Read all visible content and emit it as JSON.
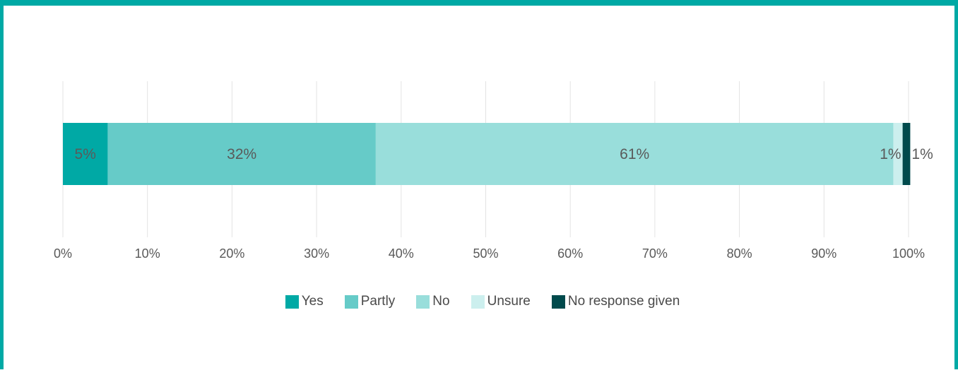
{
  "chart_data": {
    "type": "bar",
    "orientation": "horizontal",
    "stacked": true,
    "normalized": true,
    "title": "",
    "xlabel": "",
    "ylabel": "",
    "xlim": [
      0,
      100
    ],
    "x_ticks": [
      "0%",
      "10%",
      "20%",
      "30%",
      "40%",
      "50%",
      "60%",
      "70%",
      "80%",
      "90%",
      "100%"
    ],
    "grid": "vertical",
    "legend_position": "bottom",
    "series": [
      {
        "name": "Yes",
        "value": 5.3,
        "label": "5%",
        "color": "#00A9A5"
      },
      {
        "name": "Partly",
        "value": 31.7,
        "label": "32%",
        "color": "#66CBC8"
      },
      {
        "name": "No",
        "value": 61.2,
        "label": "61%",
        "color": "#99DEDB"
      },
      {
        "name": "Unsure",
        "value": 1.1,
        "label": "1%",
        "color": "#CCEFEE"
      },
      {
        "name": "No response given",
        "value": 0.9,
        "label": "1%",
        "color": "#004A4C"
      }
    ]
  }
}
